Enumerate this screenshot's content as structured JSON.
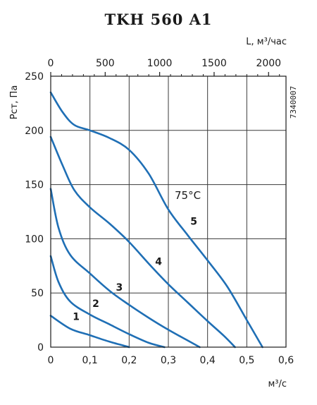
{
  "chart_data": {
    "type": "line",
    "title": "TKH 560 A1",
    "xlabel": "м³/с",
    "ylabel": "Рст, Па",
    "x2label": "L, м³/час",
    "code": "7340007",
    "annotation": "75°C",
    "xlim": [
      0,
      0.6
    ],
    "ylim": [
      0,
      250
    ],
    "x2lim": [
      0,
      2160
    ],
    "xticks": [
      "0",
      "0,1",
      "0,2",
      "0,3",
      "0,4",
      "0,5",
      "0,6"
    ],
    "yticks": [
      "0",
      "50",
      "100",
      "150",
      "200",
      "250"
    ],
    "x2ticks": [
      "0",
      "500",
      "1000",
      "1500",
      "2000"
    ],
    "grid": true,
    "color": "#1f6fb5",
    "series": [
      {
        "name": "1",
        "x": [
          0,
          0.05,
          0.1,
          0.15,
          0.2
        ],
        "y": [
          29,
          17,
          11,
          5,
          0
        ]
      },
      {
        "name": "2",
        "x": [
          0,
          0.02,
          0.05,
          0.1,
          0.15,
          0.2,
          0.25,
          0.29
        ],
        "y": [
          84,
          60,
          42,
          30,
          21,
          12,
          4,
          0
        ]
      },
      {
        "name": "3",
        "x": [
          0,
          0.02,
          0.05,
          0.1,
          0.15,
          0.2,
          0.25,
          0.3,
          0.35,
          0.38
        ],
        "y": [
          146,
          110,
          85,
          68,
          52,
          39,
          27,
          16,
          6,
          0
        ]
      },
      {
        "name": "4",
        "x": [
          0,
          0.03,
          0.06,
          0.1,
          0.15,
          0.2,
          0.25,
          0.3,
          0.35,
          0.4,
          0.44,
          0.47
        ],
        "y": [
          194,
          168,
          145,
          129,
          114,
          97,
          77,
          58,
          41,
          24,
          11,
          0
        ]
      },
      {
        "name": "5",
        "x": [
          0,
          0.03,
          0.06,
          0.1,
          0.15,
          0.2,
          0.25,
          0.3,
          0.35,
          0.4,
          0.45,
          0.5,
          0.54
        ],
        "y": [
          235,
          217,
          205,
          200,
          193,
          182,
          160,
          127,
          103,
          80,
          56,
          25,
          0
        ]
      }
    ]
  }
}
